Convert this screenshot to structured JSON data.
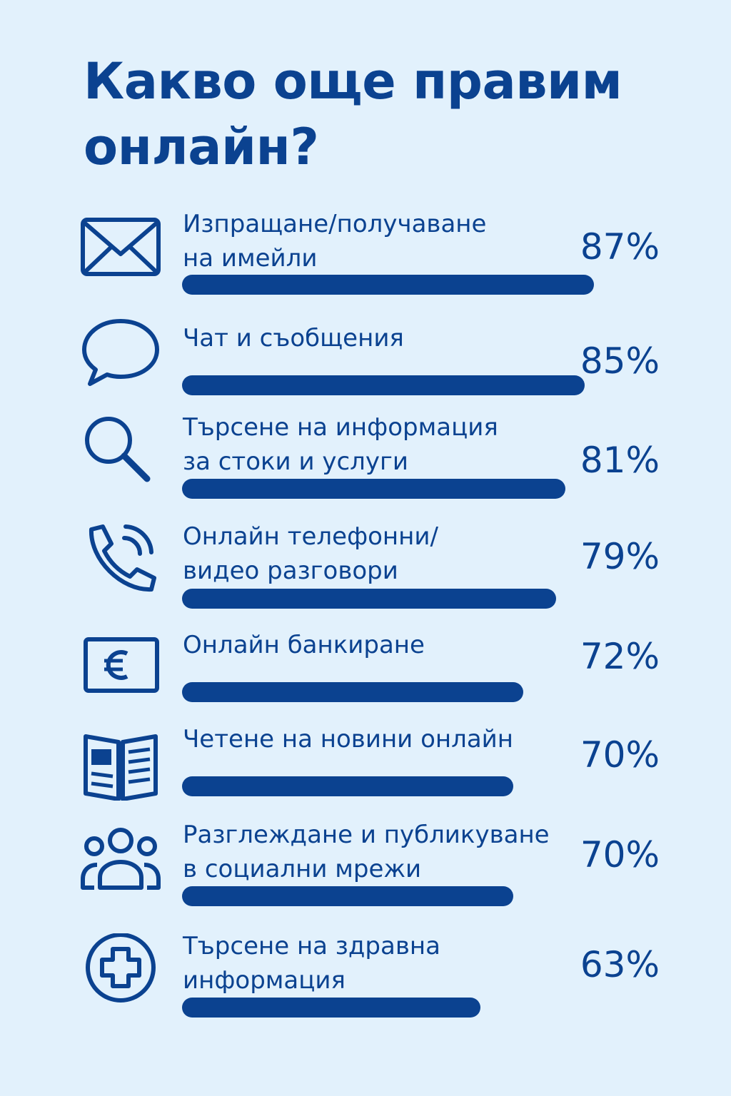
{
  "title": "Какво още правим онлайн?",
  "colors": {
    "background": "#e2f1fc",
    "accent": "#0b4290"
  },
  "chart_data": {
    "type": "bar",
    "orientation": "horizontal",
    "title": "Какво още правим онлайн?",
    "unit": "%",
    "categories": [
      "Изпращане/получаване\nна имейли",
      "Чат и съобщения",
      "Търсене на информация\nза стоки и услуги",
      "Онлайн телефонни/\nвидео разговори",
      "Онлайн банкиране",
      "Четене на новини онлайн",
      "Разглеждане и публикуване\nв социални мрежи",
      "Търсене на здравна\nинформация"
    ],
    "values": [
      87,
      85,
      81,
      79,
      72,
      70,
      70,
      63
    ],
    "value_labels": [
      "87%",
      "85%",
      "81%",
      "79%",
      "72%",
      "70%",
      "70%",
      "63%"
    ],
    "icons": [
      "envelope-icon",
      "chat-bubble-icon",
      "magnifier-icon",
      "phone-call-icon",
      "euro-card-icon",
      "newspaper-icon",
      "people-group-icon",
      "medical-cross-icon"
    ],
    "xlim": [
      0,
      87
    ],
    "grid": false,
    "legend": "none"
  }
}
